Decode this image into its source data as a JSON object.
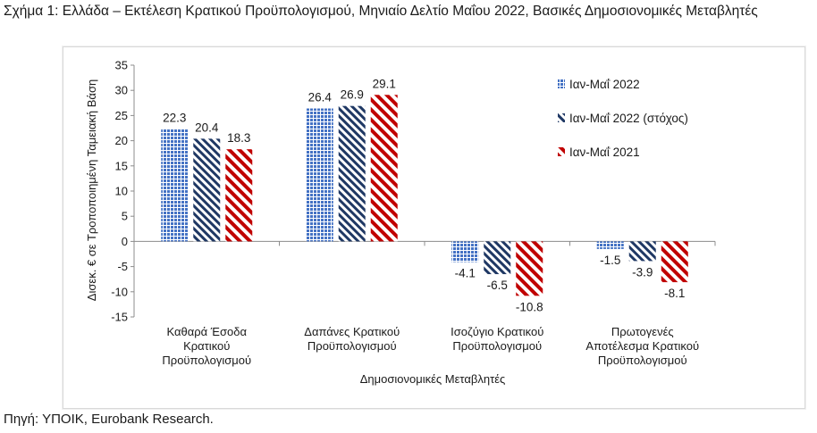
{
  "figure": {
    "title": "Σχήμα 1: Ελλάδα – Εκτέλεση Κρατικού Προϋπολογισμού, Μηνιαίο Δελτίο Μαΐου 2022, Βασικές Δημοσιονομικές Μεταβλητές",
    "source": "Πηγή: ΥΠΟΙΚ, Eurobank Research."
  },
  "chart_data": {
    "type": "bar",
    "title": "",
    "ylabel": "Δισεκ. € σε Τροποποιημένη Ταμειακή Βάση",
    "xlabel": "Δημοσιονομικές Μεταβλητές",
    "ylim": [
      -15,
      35
    ],
    "yticks": [
      "35",
      "30",
      "25",
      "20",
      "15",
      "10",
      "5",
      "0",
      "-5",
      "-10",
      "-15"
    ],
    "categories": [
      [
        "Καθαρά Έσοδα",
        "Κρατικού",
        "Προϋπολογισμού"
      ],
      [
        "Δαπάνες Κρατικού",
        "Προϋπολογισμού"
      ],
      [
        "Ισοζύγιο Κρατικού",
        "Προϋπολογισμού"
      ],
      [
        "Πρωτογενές",
        "Αποτέλεσμα Κρατικού",
        "Προϋπολογισμού"
      ]
    ],
    "series": [
      {
        "name": "Ιαν-Μαΐ 2022",
        "color": "#4472c4",
        "pattern": "dots",
        "values": [
          22.3,
          26.4,
          -4.1,
          -1.5
        ],
        "labels": [
          "22.3",
          "26.4",
          "-4.1",
          "-1.5"
        ]
      },
      {
        "name": "Ιαν-Μαΐ 2022 (στόχος)",
        "color": "#1f3864",
        "pattern": "diagonal",
        "values": [
          20.4,
          26.9,
          -6.5,
          -3.9
        ],
        "labels": [
          "20.4",
          "26.9",
          "-6.5",
          "-3.9"
        ]
      },
      {
        "name": "Ιαν-Μαΐ 2021",
        "color": "#c00000",
        "pattern": "diagonal-wide",
        "values": [
          18.3,
          29.1,
          -10.8,
          -8.1
        ],
        "labels": [
          "18.3",
          "29.1",
          "-10.8",
          "-8.1"
        ]
      }
    ],
    "grid": false,
    "legend_position": "right"
  }
}
